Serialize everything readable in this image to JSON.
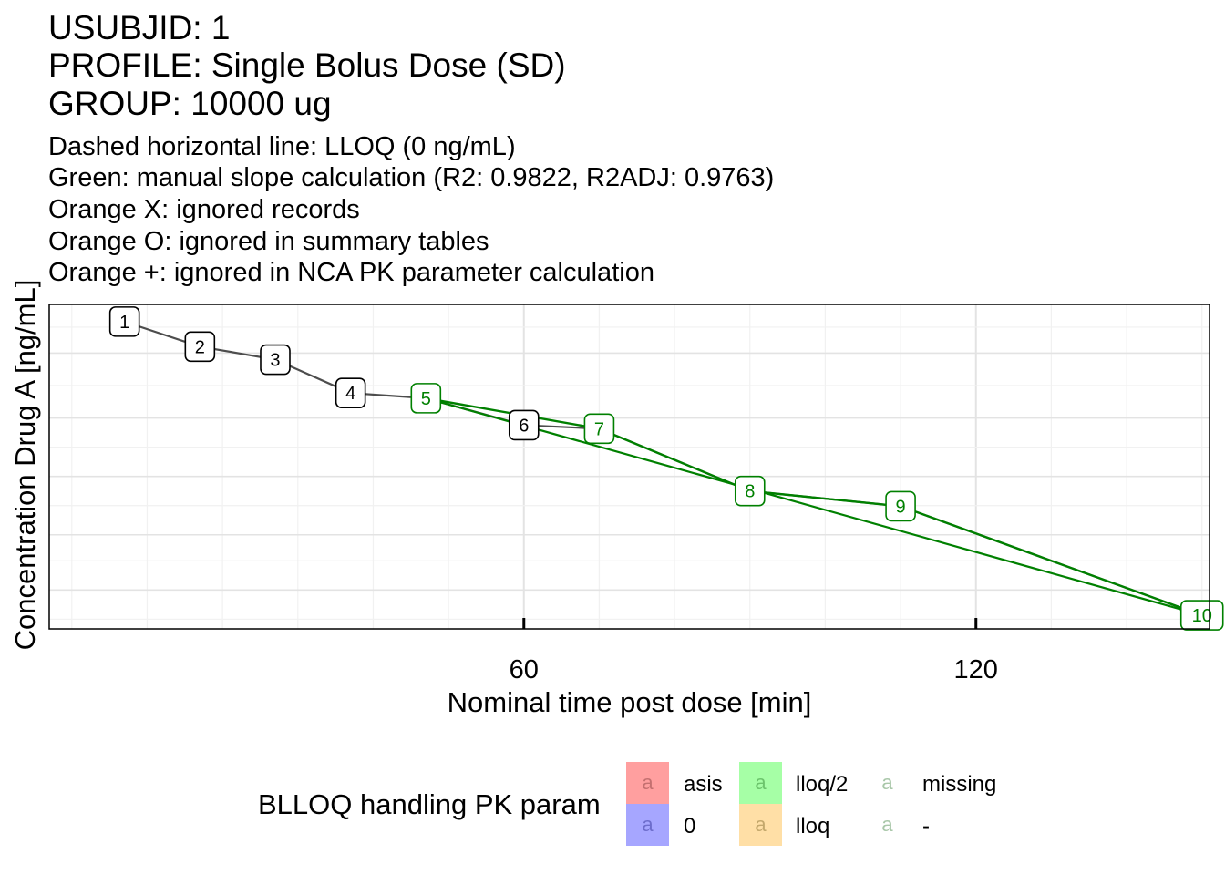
{
  "title_lines": [
    "USUBJID: 1",
    "PROFILE: Single Bolus Dose (SD)",
    "GROUP: 10000 ug"
  ],
  "subtitle_lines": [
    "Dashed horizontal line: LLOQ (0 ng/mL)",
    "Green: manual slope calculation (R2: 0.9822, R2ADJ: 0.9763)",
    "Orange X: ignored records",
    "Orange O: ignored in summary tables",
    "Orange +: ignored in NCA PK parameter calculation"
  ],
  "colors": {
    "profile_line": "#4d4d4d",
    "slope_line": "#008000",
    "label_border_default": "#000000",
    "label_border_slope": "#008000",
    "grid_major": "#e3e3e3",
    "grid_minor": "#f1f1f1"
  },
  "chart_data": {
    "type": "line",
    "xlabel": "Nominal time post dose [min]",
    "ylabel": "Concentration Drug A [ng/mL]",
    "x_ticks": [
      60,
      120
    ],
    "xlim": [
      -3,
      151
    ],
    "y_scale": "log",
    "y_tick_labels_shown": false,
    "ylim_rel": [
      0,
      1
    ],
    "grid": true,
    "series": [
      {
        "role": "observed",
        "points": [
          {
            "label": "1",
            "x": 7,
            "y": 0.947,
            "in_slope": false
          },
          {
            "label": "2",
            "x": 17,
            "y": 0.87,
            "in_slope": false
          },
          {
            "label": "3",
            "x": 27,
            "y": 0.83,
            "in_slope": false
          },
          {
            "label": "4",
            "x": 37,
            "y": 0.727,
            "in_slope": false
          },
          {
            "label": "5",
            "x": 47,
            "y": 0.711,
            "in_slope": true
          },
          {
            "label": "6",
            "x": 60,
            "y": 0.628,
            "in_slope": false
          },
          {
            "label": "7",
            "x": 70,
            "y": 0.617,
            "in_slope": true
          },
          {
            "label": "8",
            "x": 90,
            "y": 0.425,
            "in_slope": true
          },
          {
            "label": "9",
            "x": 110,
            "y": 0.378,
            "in_slope": true
          },
          {
            "label": "10",
            "x": 150,
            "y": 0.042,
            "in_slope": true
          }
        ]
      }
    ],
    "slope_fit": {
      "x": [
        47,
        150
      ],
      "y": [
        0.711,
        0.042
      ]
    },
    "legend": {
      "title": "BLLOQ handling PK param",
      "position": "bottom",
      "glyph": "a",
      "entries": [
        {
          "label": "asis",
          "fill": "#ff9f9f",
          "glyph_color": "#c47070"
        },
        {
          "label": "0",
          "fill": "#a6a6ff",
          "glyph_color": "#6d6dcc"
        },
        {
          "label": "lloq/2",
          "fill": "#a6ffa6",
          "glyph_color": "#6cc46c"
        },
        {
          "label": "lloq",
          "fill": "#ffdfa6",
          "glyph_color": "#c4a86c"
        },
        {
          "label": "missing",
          "fill": "#ffffff",
          "glyph_color": "#a9c7a9"
        },
        {
          "label": "-",
          "fill": "#ffffff",
          "glyph_color": "#a9c7a9"
        }
      ]
    }
  }
}
